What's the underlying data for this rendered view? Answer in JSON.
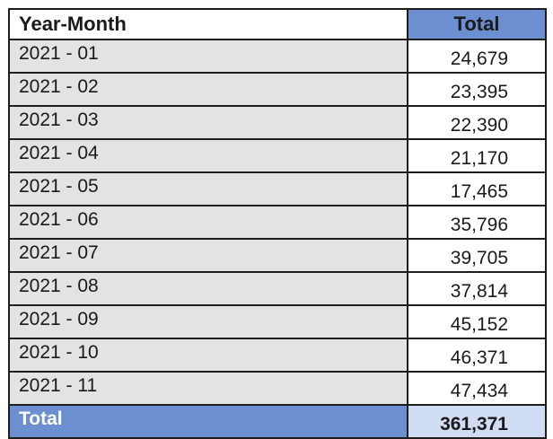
{
  "chart_data": {
    "type": "table",
    "columns": [
      "Year-Month",
      "Total"
    ],
    "rows": [
      {
        "label": "2021 - 01",
        "value": "24,679"
      },
      {
        "label": "2021 - 02",
        "value": "23,395"
      },
      {
        "label": "2021 - 03",
        "value": "22,390"
      },
      {
        "label": "2021 - 04",
        "value": "21,170"
      },
      {
        "label": "2021 - 05",
        "value": "17,465"
      },
      {
        "label": "2021 - 06",
        "value": "35,796"
      },
      {
        "label": "2021 - 07",
        "value": "39,705"
      },
      {
        "label": "2021 - 08",
        "value": "37,814"
      },
      {
        "label": "2021 - 09",
        "value": "45,152"
      },
      {
        "label": "2021 - 10",
        "value": "46,371"
      },
      {
        "label": "2021 - 11",
        "value": "47,434"
      }
    ],
    "total": {
      "label": "Total",
      "value": "361,371"
    }
  },
  "colors": {
    "header_accent": "#6b8fd0",
    "label_cell": "#e3e3e3",
    "total_value_cell": "#d0dcf3"
  }
}
